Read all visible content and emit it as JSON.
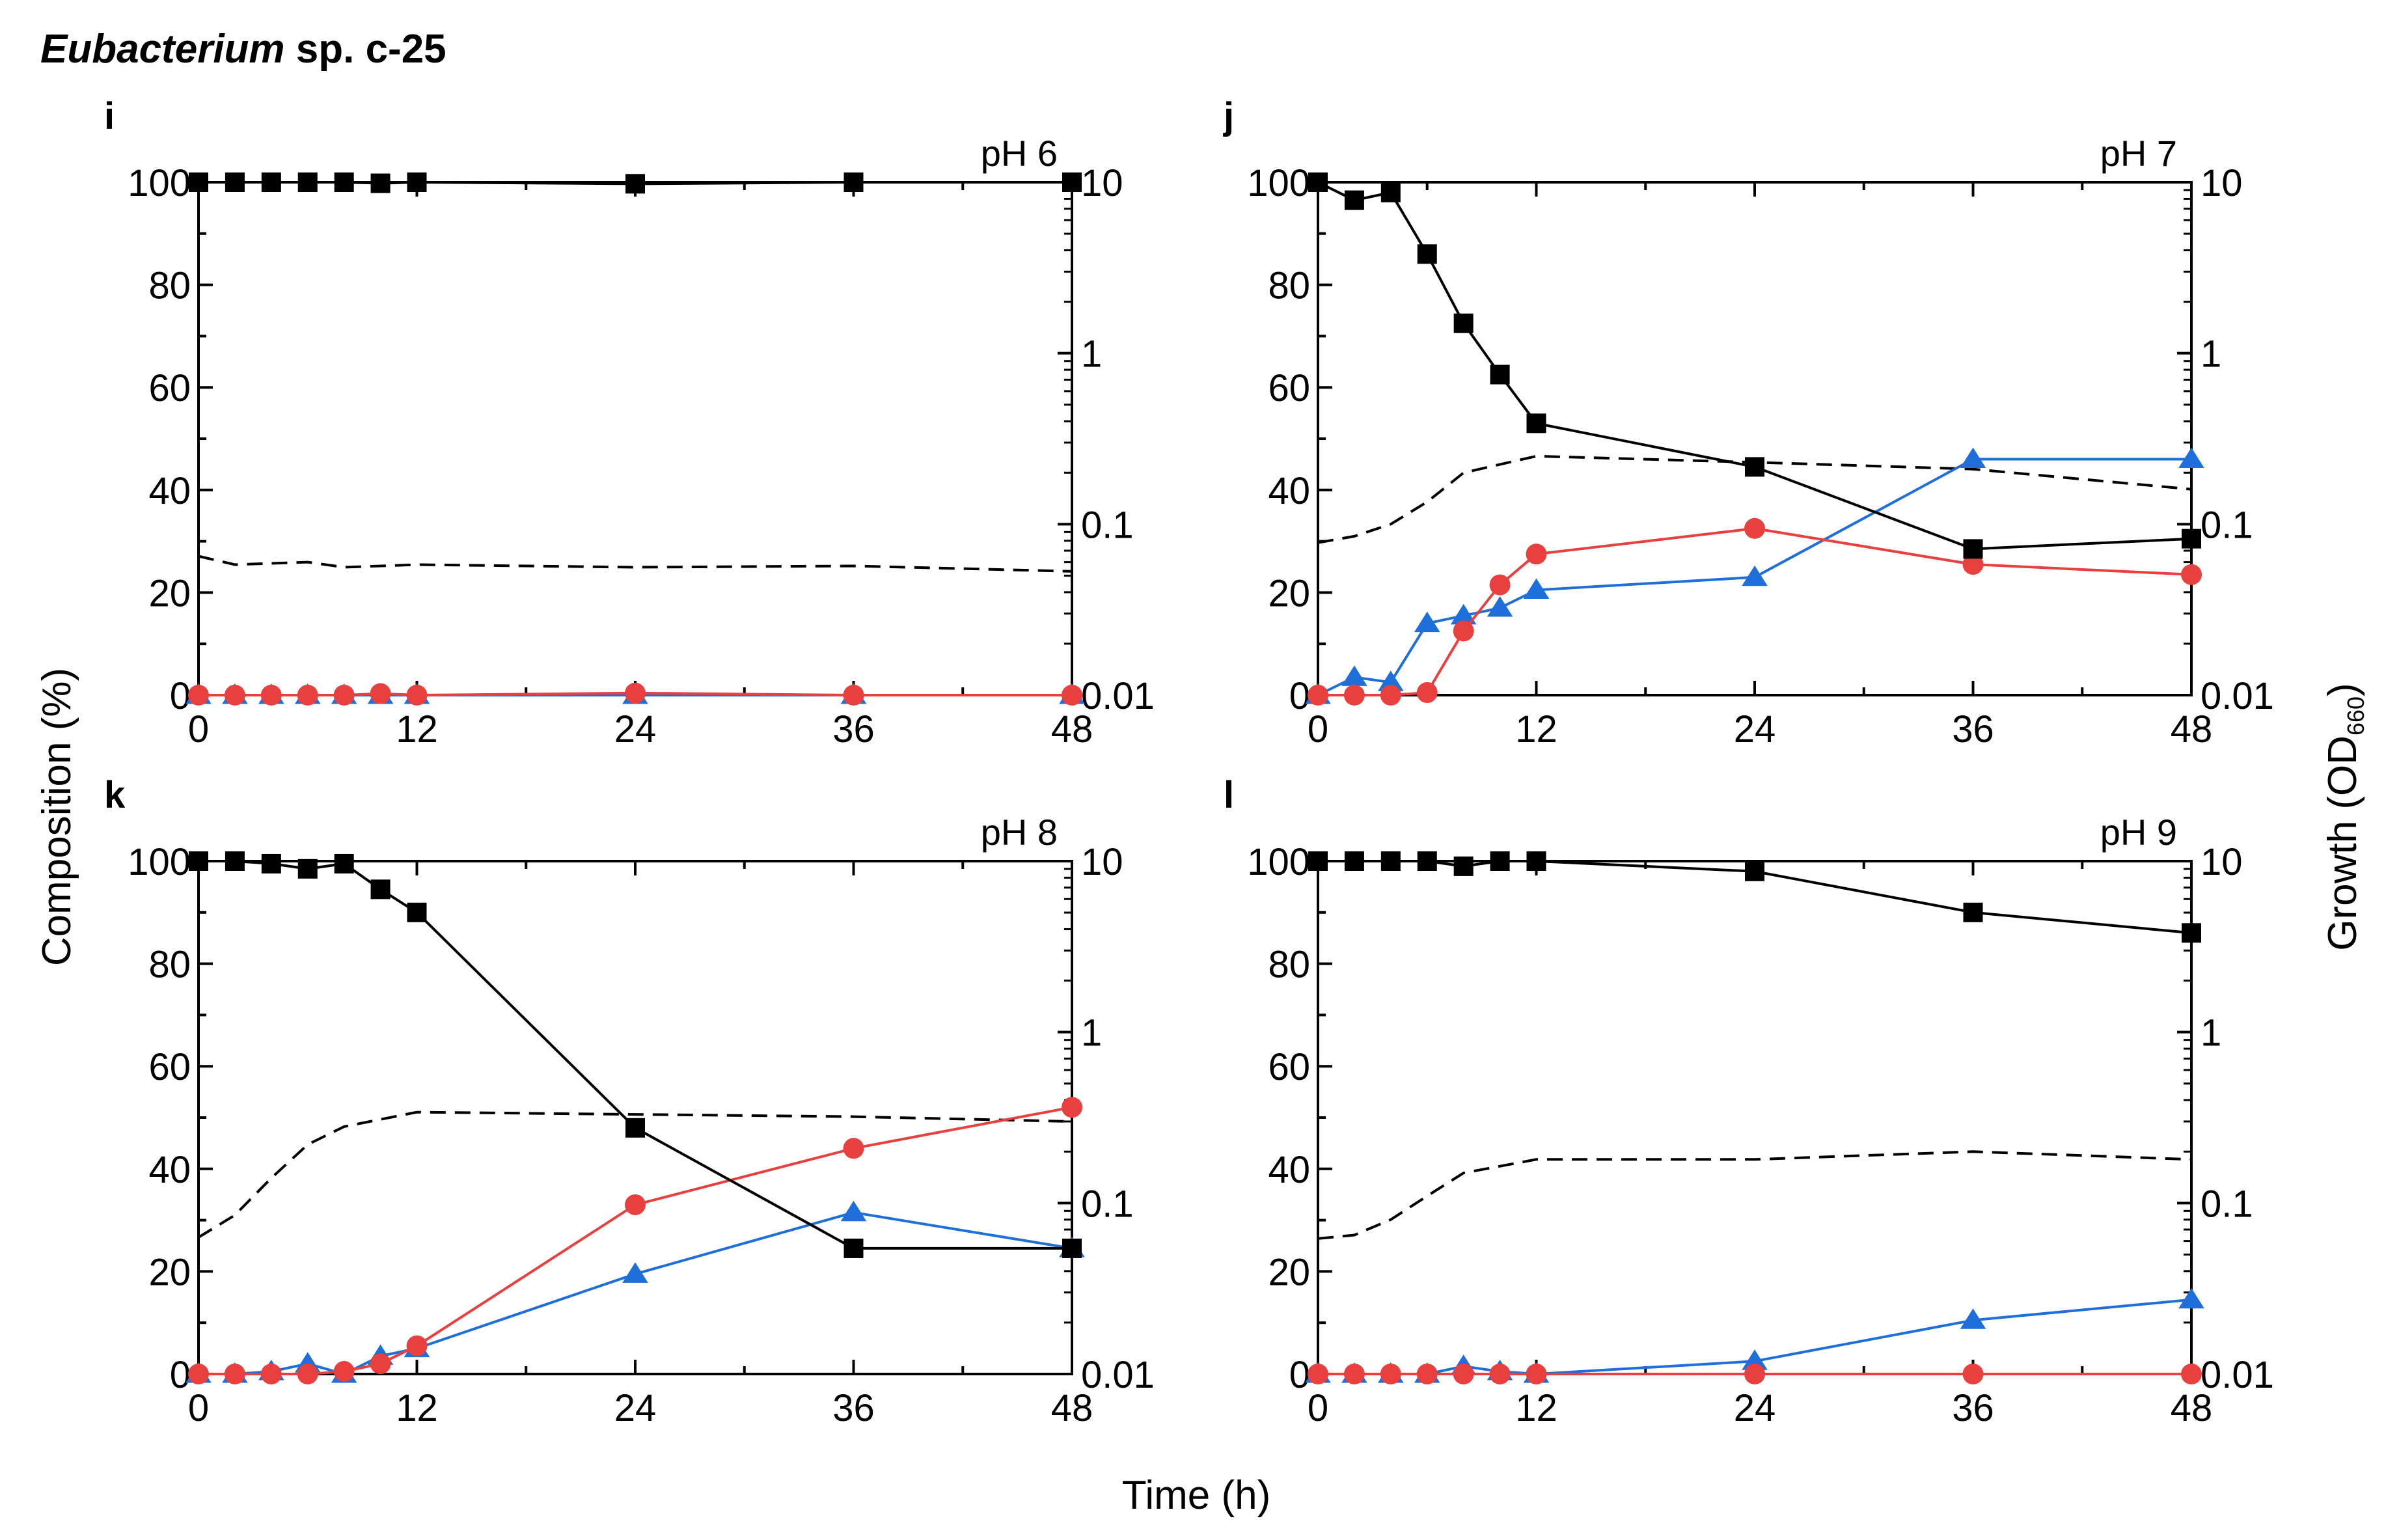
{
  "figure": {
    "title_italic": "Eubacterium",
    "title_rest": " sp. c-25",
    "xlabel": "Time (h)",
    "ylabel_left": "Composition (%)",
    "ylabel_right_main": "Growth (OD",
    "ylabel_right_sub": "660",
    "ylabel_right_close": ")"
  },
  "colors": {
    "black_series": "#000000",
    "red_series": "#e8403f",
    "blue_series": "#1e6fd9",
    "growth_line": "#000000"
  },
  "chart_data": [
    {
      "type": "line",
      "panel": "i",
      "title": "pH 6",
      "x": [
        0,
        2,
        4,
        6,
        8,
        10,
        12,
        24,
        36,
        48
      ],
      "xlim": [
        0,
        48
      ],
      "xticks": [
        0,
        12,
        24,
        36,
        48
      ],
      "ylim": [
        0,
        100
      ],
      "yticks": [
        0,
        20,
        40,
        60,
        80,
        100
      ],
      "y2_scale": "log",
      "y2lim": [
        0.01,
        10
      ],
      "y2ticks": [
        "0.01",
        "0.1",
        "1",
        "10"
      ],
      "series": [
        {
          "name": "black-squares",
          "marker": "square",
          "values": [
            100,
            100,
            100,
            100,
            100,
            99.8,
            100,
            99.7,
            100,
            100
          ]
        },
        {
          "name": "red-circles",
          "marker": "circle",
          "values": [
            0,
            0,
            0,
            0,
            0,
            0.3,
            0,
            0.4,
            0,
            0
          ]
        },
        {
          "name": "blue-triangles",
          "marker": "triangle",
          "values": [
            0,
            0,
            0,
            0,
            0,
            0,
            0,
            0,
            0,
            0
          ]
        }
      ],
      "growth": {
        "name": "growth-od660",
        "x": [
          0,
          2,
          6,
          8,
          12,
          24,
          36,
          48
        ],
        "values": [
          0.065,
          0.058,
          0.06,
          0.056,
          0.058,
          0.056,
          0.057,
          0.053
        ]
      }
    },
    {
      "type": "line",
      "panel": "j",
      "title": "pH 7",
      "x": [
        0,
        2,
        4,
        6,
        8,
        10,
        12,
        24,
        36,
        48
      ],
      "xlim": [
        0,
        48
      ],
      "xticks": [
        0,
        12,
        24,
        36,
        48
      ],
      "ylim": [
        0,
        100
      ],
      "yticks": [
        0,
        20,
        40,
        60,
        80,
        100
      ],
      "y2_scale": "log",
      "y2lim": [
        0.01,
        10
      ],
      "y2ticks": [
        "0.01",
        "0.1",
        "1",
        "10"
      ],
      "series": [
        {
          "name": "black-squares",
          "marker": "square",
          "values": [
            100,
            96.5,
            98,
            86,
            72.5,
            62.5,
            53,
            44.5,
            28.5,
            30.5
          ]
        },
        {
          "name": "red-circles",
          "marker": "circle",
          "values": [
            0,
            0,
            0,
            0.5,
            12.5,
            21.5,
            27.5,
            32.5,
            25.5,
            23.5
          ]
        },
        {
          "name": "blue-triangles",
          "marker": "triangle",
          "values": [
            0,
            3.5,
            2.5,
            14,
            15.5,
            17,
            20.5,
            23,
            46,
            46
          ]
        }
      ],
      "growth": {
        "name": "growth-od660",
        "x": [
          0,
          2,
          4,
          6,
          8,
          12,
          24,
          36,
          48
        ],
        "values": [
          0.078,
          0.085,
          0.1,
          0.135,
          0.2,
          0.25,
          0.23,
          0.21,
          0.16
        ]
      }
    },
    {
      "type": "line",
      "panel": "k",
      "title": "pH 8",
      "x": [
        0,
        2,
        4,
        6,
        8,
        10,
        12,
        24,
        36,
        48
      ],
      "xlim": [
        0,
        48
      ],
      "xticks": [
        0,
        12,
        24,
        36,
        48
      ],
      "ylim": [
        0,
        100
      ],
      "yticks": [
        0,
        20,
        40,
        60,
        80,
        100
      ],
      "y2_scale": "log",
      "y2lim": [
        0.01,
        10
      ],
      "y2ticks": [
        "0.01",
        "0.1",
        "1",
        "10"
      ],
      "series": [
        {
          "name": "black-squares",
          "marker": "square",
          "values": [
            100,
            100,
            99.5,
            98.5,
            99.5,
            94.5,
            90,
            48,
            24.5,
            24.5
          ]
        },
        {
          "name": "red-circles",
          "marker": "circle",
          "values": [
            0,
            0,
            0,
            0,
            0.5,
            2,
            5.5,
            33,
            44,
            52
          ]
        },
        {
          "name": "blue-triangles",
          "marker": "triangle",
          "values": [
            0,
            0,
            0.5,
            2,
            0,
            3.5,
            5,
            19.5,
            31.5,
            24.5
          ]
        }
      ],
      "growth": {
        "name": "growth-od660",
        "x": [
          0,
          2,
          4,
          6,
          8,
          12,
          24,
          36,
          48
        ],
        "values": [
          0.063,
          0.085,
          0.14,
          0.22,
          0.28,
          0.34,
          0.33,
          0.32,
          0.3
        ]
      }
    },
    {
      "type": "line",
      "panel": "l",
      "title": "pH 9",
      "x": [
        0,
        2,
        4,
        6,
        8,
        10,
        12,
        24,
        36,
        48
      ],
      "xlim": [
        0,
        48
      ],
      "xticks": [
        0,
        12,
        24,
        36,
        48
      ],
      "ylim": [
        0,
        100
      ],
      "yticks": [
        0,
        20,
        40,
        60,
        80,
        100
      ],
      "y2_scale": "log",
      "y2lim": [
        0.01,
        10
      ],
      "y2ticks": [
        "0.01",
        "0.1",
        "1",
        "10"
      ],
      "series": [
        {
          "name": "black-squares",
          "marker": "square",
          "values": [
            100,
            100,
            100,
            100,
            99,
            100,
            100,
            98,
            90,
            86
          ]
        },
        {
          "name": "red-circles",
          "marker": "circle",
          "values": [
            0,
            0,
            0,
            0,
            0,
            0,
            0,
            0,
            0,
            0
          ]
        },
        {
          "name": "blue-triangles",
          "marker": "triangle",
          "values": [
            0,
            0,
            0,
            0,
            1.5,
            0.5,
            0,
            2.5,
            10.5,
            14.5
          ]
        }
      ],
      "growth": {
        "name": "growth-od660",
        "x": [
          0,
          2,
          4,
          6,
          8,
          12,
          24,
          36,
          48
        ],
        "values": [
          0.062,
          0.065,
          0.08,
          0.11,
          0.15,
          0.18,
          0.18,
          0.2,
          0.18
        ]
      }
    }
  ]
}
